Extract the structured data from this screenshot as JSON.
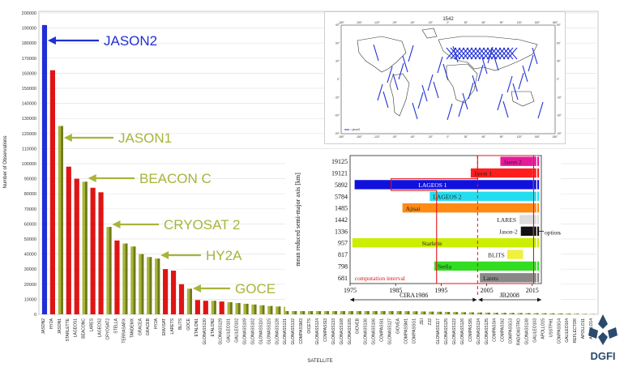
{
  "chart_data": [
    {
      "type": "bar",
      "xlabel": "SATELLITE",
      "ylabel": "Number of Observations",
      "ylim": [
        0,
        200000
      ],
      "yticks": [
        0,
        10000,
        20000,
        30000,
        40000,
        50000,
        60000,
        70000,
        80000,
        90000,
        100000,
        110000,
        120000,
        130000,
        140000,
        150000,
        160000,
        170000,
        180000,
        190000,
        200000
      ],
      "grid": true,
      "categories": [
        "JASON2",
        "HY2A",
        "JASON1",
        "STARLETTE",
        "LAGEOS1",
        "BEACONC",
        "LARES",
        "LAGEOS2",
        "CRYOSAT2",
        "STELLA",
        "TERRASARX",
        "TANDEMX",
        "GRACEA",
        "GRACEB",
        "HY2A",
        "ENVISAT",
        "LARETS",
        "BLITS",
        "GOCE",
        "ETALON1",
        "GLONASS130",
        "ETALON2",
        "GLONASS129",
        "GALILEO101",
        "GALILEO102",
        "GLONASS109",
        "GLONASS102",
        "GLONASS110",
        "GLONASS115",
        "GLONASS128",
        "GLONASS131",
        "GLONASS132",
        "COMPASSM3",
        "OICETS",
        "GLONASS124",
        "COMPASSI3",
        "GLONASS133",
        "GLONASS108",
        "GLONASS105",
        "GIOVEB",
        "GLONASS136",
        "GLONASS106",
        "COMPASSI1",
        "GLONASS127",
        "GIOVEA",
        "COMPASSM1",
        "COMPASSG1",
        "ZEI",
        "ZJ2",
        "GLONASS117",
        "GLONASS125",
        "GLONASS122",
        "GLONASS126",
        "COMPASSI5",
        "GLONASS134",
        "GLONASS135",
        "COMPASSI4",
        "COMPASSI2",
        "COMPASSG3",
        "RADIOASTRO",
        "GLONASS138",
        "GALILEO103",
        "APOLLO15",
        "USSTPH1",
        "COMPASSG4",
        "GALILEO104",
        "REFLECTOR",
        "APOLLO11",
        "APOLLO14"
      ],
      "colors": [
        "#1f2fd6",
        "#e01414",
        "#a8b43a",
        "#e01414",
        "#e01414",
        "#a8b43a",
        "#e01414",
        "#e01414",
        "#a8b43a",
        "#e01414",
        "#a8b43a",
        "#a8b43a",
        "#a8b43a",
        "#a8b43a",
        "#a8b43a",
        "#e01414",
        "#e01414",
        "#e01414",
        "#a8b43a",
        "#e01414",
        "#e01414",
        "#a8b43a",
        "#e01414",
        "#a8b43a",
        "#a8b43a",
        "#a8b43a",
        "#a8b43a",
        "#a8b43a",
        "#a8b43a",
        "#a8b43a",
        "#a8b43a",
        "#a8b43a",
        "#a8b43a",
        "#a8b43a",
        "#a8b43a",
        "#a8b43a",
        "#a8b43a",
        "#a8b43a",
        "#a8b43a",
        "#a8b43a",
        "#a8b43a",
        "#a8b43a",
        "#a8b43a",
        "#a8b43a",
        "#a8b43a",
        "#a8b43a",
        "#a8b43a",
        "#a8b43a",
        "#a8b43a",
        "#a8b43a",
        "#a8b43a",
        "#a8b43a",
        "#a8b43a",
        "#a8b43a",
        "#a8b43a",
        "#a8b43a",
        "#a8b43a",
        "#a8b43a",
        "#a8b43a",
        "#a8b43a",
        "#a8b43a",
        "#a8b43a",
        "#a8b43a",
        "#a8b43a",
        "#a8b43a",
        "#a8b43a",
        "#a8b43a",
        "#a8b43a",
        "#a8b43a"
      ],
      "values": [
        192000,
        162000,
        125000,
        98000,
        90000,
        88000,
        84000,
        81000,
        58000,
        49000,
        47000,
        45000,
        40000,
        38000,
        37000,
        30000,
        29000,
        20000,
        17000,
        9500,
        9000,
        9000,
        8500,
        8000,
        7500,
        7000,
        6500,
        6000,
        5500,
        5200,
        5000,
        4700,
        4500,
        4200,
        4000,
        3800,
        3600,
        3400,
        3200,
        3000,
        2800,
        2600,
        2500,
        2300,
        2200,
        2100,
        2000,
        1900,
        1800,
        1700,
        1600,
        1500,
        1400,
        1300,
        1200,
        1100,
        1000,
        950,
        900,
        850,
        800,
        750,
        700,
        650,
        600,
        500,
        400,
        300,
        200
      ],
      "annotations": [
        {
          "text": "JASON2",
          "color": "#1f2fd6",
          "target_index": 0
        },
        {
          "text": "JASON1",
          "color": "#a8b43a",
          "target_index": 2
        },
        {
          "text": "BEACON C",
          "color": "#a8b43a",
          "target_index": 5
        },
        {
          "text": "CRYOSAT 2",
          "color": "#a8b43a",
          "target_index": 8
        },
        {
          "text": "HY2A",
          "color": "#a8b43a",
          "target_index": 14
        },
        {
          "text": "GOCE",
          "color": "#a8b43a",
          "target_index": 18
        }
      ]
    },
    {
      "type": "map",
      "title": "1542",
      "legend_text": "= jason2",
      "lon_ticks": [
        "-180°",
        "-150°",
        "-120°",
        "-90°",
        "-60°",
        "-30°",
        "0°",
        "30°",
        "60°",
        "90°",
        "120°",
        "150°",
        "180°"
      ],
      "lat_ticks": [
        "90°",
        "60°",
        "30°",
        "0°",
        "-30°",
        "-60°",
        "-90°"
      ],
      "track_color": "#1f2fd6"
    },
    {
      "type": "timeline",
      "ylabel": "mean reduced semi-major axis [km]",
      "xlim": [
        1975,
        2017
      ],
      "xticks": [
        1975,
        1985,
        1995,
        2005,
        2015
      ],
      "row_labels": [
        "19125",
        "19121",
        "5892",
        "5784",
        "1485",
        "1442",
        "1336",
        "957",
        "817",
        "798",
        "681"
      ],
      "bars": [
        {
          "row": 0,
          "label": "Jason 2",
          "start": 2008,
          "end": 2016.5,
          "color": "#e6199b"
        },
        {
          "row": 1,
          "label": "Jason 1",
          "start": 2001.5,
          "end": 2016.5,
          "color": "#ff1e1e"
        },
        {
          "row": 2,
          "label": "LAGEOS 1",
          "start": 1976,
          "end": 2016.5,
          "color": "#1111dd"
        },
        {
          "row": 3,
          "label": "LAGEOS 2",
          "start": 1992.5,
          "end": 2016.5,
          "color": "#22ddee"
        },
        {
          "row": 4,
          "label": "Ajisai",
          "start": 1986.5,
          "end": 2016.5,
          "color": "#ff8a14"
        },
        {
          "row": 5,
          "label": "LARES",
          "start": 2012.2,
          "end": 2016.5,
          "color": "#dddddd"
        },
        {
          "row": 6,
          "label": "Jason-2",
          "start": 2012.5,
          "end": 2016.5,
          "color": "#111111"
        },
        {
          "row": 7,
          "label": "Starlette",
          "start": 1975.5,
          "end": 2016.5,
          "color": "#ccee00"
        },
        {
          "row": 8,
          "label": "BLITS",
          "start": 2009.5,
          "end": 2013,
          "color": "#f0f040"
        },
        {
          "row": 9,
          "label": "Stella",
          "start": 1993.5,
          "end": 2016.5,
          "color": "#33dd22"
        },
        {
          "row": 10,
          "label": "Larets",
          "start": 2003.5,
          "end": 2016.5,
          "color": "#888888"
        }
      ],
      "labels": {
        "optional": "optional",
        "computation_interval": "computation interval",
        "cira": "CIRA1986",
        "jb": "JB2008"
      },
      "vline_year": 2003
    }
  ],
  "logo": {
    "text": "DGFI",
    "color": "#2b4a6e"
  }
}
